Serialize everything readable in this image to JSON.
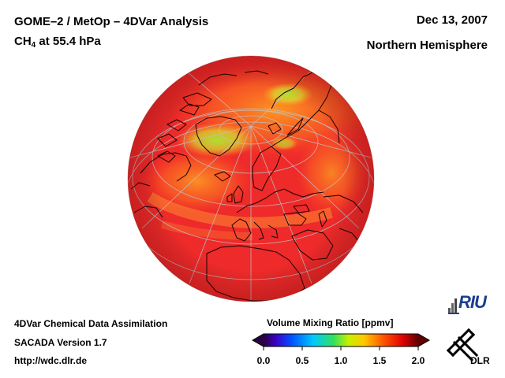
{
  "header": {
    "title": "GOME–2 / MetOp – 4DVar Analysis",
    "species_prefix": "CH",
    "species_sub": "4",
    "species_suffix": " at 55.4 hPa",
    "date": "Dec 13, 2007",
    "region": "Northern Hemisphere"
  },
  "footer": {
    "line1": "4DVar Chemical Data Assimilation",
    "line2": "SACADA Version 1.7",
    "line3": "http://wdc.dlr.de"
  },
  "colorbar": {
    "title": "Volume Mixing Ratio [ppmv]",
    "ticks": [
      "0.0",
      "0.5",
      "1.0",
      "1.5",
      "2.0"
    ],
    "range": [
      0.0,
      2.0
    ],
    "colors": [
      "#2a0040",
      "#3c00c8",
      "#0050ff",
      "#00c8ff",
      "#30e060",
      "#c8f000",
      "#ffc800",
      "#ff5000",
      "#e00000",
      "#600000"
    ]
  },
  "map": {
    "projection": "orthographic",
    "dominant_color": "#ee2a2a",
    "high_value_color": "#ff3030",
    "mid_value_color": "#ffb020",
    "low_value_color": "#c8f000"
  },
  "logos": {
    "riu": "RIU",
    "dlr": "DLR"
  }
}
